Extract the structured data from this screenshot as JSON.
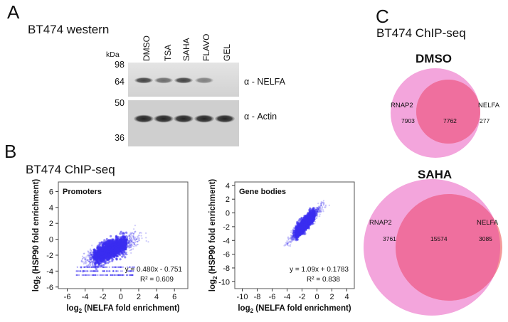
{
  "panels": {
    "a": {
      "letter": "A",
      "title": "BT474 western",
      "kda_label": "kDa",
      "lanes": [
        "DMSO",
        "TSA",
        "SAHA",
        "FLAVO",
        "GEL"
      ],
      "markers": [
        "98",
        "64",
        "50",
        "36"
      ],
      "blots": [
        {
          "label": "α - NELFA",
          "band_intensity": [
            0.75,
            0.55,
            0.75,
            0.45,
            0.0
          ]
        },
        {
          "label": "α - Actin",
          "band_intensity": [
            0.9,
            0.9,
            0.9,
            0.9,
            0.9
          ]
        }
      ]
    },
    "b": {
      "letter": "B",
      "title": "BT474 ChIP-seq",
      "dot_color": "#3a2ef0"
    },
    "c": {
      "letter": "C",
      "title": "BT474 ChIP-seq",
      "venns": [
        {
          "title": "DMSO",
          "left_label": "RNAP2",
          "right_label": "NELFA",
          "left_only": "7903",
          "overlap": "7762",
          "right_only": "277"
        },
        {
          "title": "SAHA",
          "left_label": "RNAP2",
          "right_label": "NELFA",
          "left_only": "3761",
          "overlap": "15574",
          "right_only": "3085"
        }
      ],
      "colors": {
        "rnap2": "#f3a5dc",
        "nelfa": "#f49a9a",
        "overlap": "#ef6f9e"
      }
    }
  },
  "chart_data": [
    {
      "type": "scatter",
      "title": "Promoters",
      "xlabel": "log2 (NELFA fold enrichment)",
      "ylabel": "log2 (HSP90 fold enrichment)",
      "xlim": [
        -7,
        7.5
      ],
      "ylim": [
        -6.2,
        7.2
      ],
      "xticks": [
        "-6",
        "-4",
        "-2",
        "0",
        "2",
        "4",
        "6"
      ],
      "yticks": [
        "6",
        "4",
        "2",
        "0",
        "-2",
        "-4",
        "-6"
      ],
      "fit": {
        "slope": 0.48,
        "intercept": -0.751,
        "equation": "y = 0.480x - 0.751",
        "r2": "R² = 0.609"
      },
      "cloud": {
        "x_center": -1.2,
        "x_sd": 1.3,
        "x_range": [
          -4.5,
          5.5
        ],
        "y_noise_sd": 0.55,
        "floor_rows_y": [
          -3.5,
          -4.0,
          -4.5
        ]
      }
    },
    {
      "type": "scatter",
      "title": "Gene bodies",
      "xlabel": "log2 (NELFA fold enrichment)",
      "ylabel": "log2 (HSP90 fold enrichment)",
      "xlim": [
        -11,
        5
      ],
      "ylim": [
        -11,
        4.5
      ],
      "xticks": [
        "-10",
        "-8",
        "-6",
        "-4",
        "-2",
        "0",
        "2",
        "4"
      ],
      "yticks": [
        "4",
        "2",
        "0",
        "-2",
        "-4",
        "-6",
        "-8",
        "-10"
      ],
      "fit": {
        "slope": 1.09,
        "intercept": 0.1783,
        "equation": "y = 1.09x + 0.1783",
        "r2": "R² = 0.838"
      },
      "cloud": {
        "x_center": -1.6,
        "x_sd": 0.9,
        "x_range": [
          -4.5,
          3.0
        ],
        "y_noise_sd": 0.45
      }
    }
  ]
}
